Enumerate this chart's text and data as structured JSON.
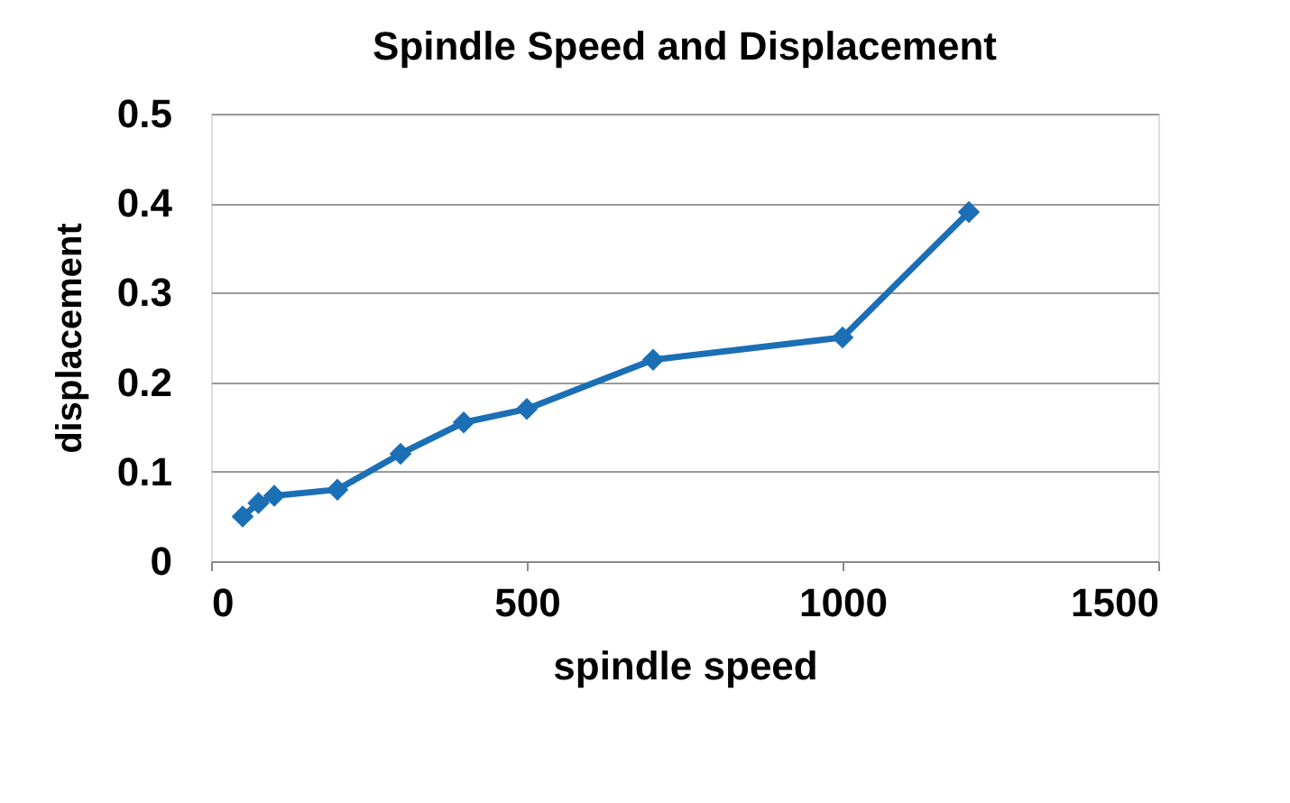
{
  "chart_data": {
    "type": "line",
    "title": "Spindle Speed  and Displacement",
    "xlabel": "spindle speed",
    "ylabel": "displacement",
    "x": [
      50,
      75,
      100,
      200,
      300,
      400,
      500,
      700,
      1000,
      1200
    ],
    "series": [
      {
        "color": "#1b6fb5",
        "values": [
          0.05,
          0.065,
          0.073,
          0.08,
          0.12,
          0.155,
          0.17,
          0.225,
          0.25,
          0.39
        ]
      }
    ],
    "xlim": [
      0,
      1500
    ],
    "xticks": [
      0,
      500,
      1000,
      1500
    ],
    "ylim": [
      0,
      0.5
    ],
    "yticks": [
      0,
      0.1,
      0.2,
      0.3,
      0.4,
      0.5
    ],
    "grid": "y",
    "marker": "diamond",
    "line_style": "solid"
  }
}
